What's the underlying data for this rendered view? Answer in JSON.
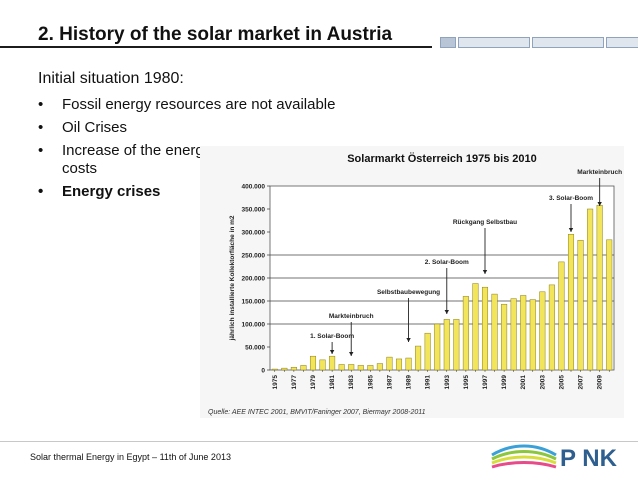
{
  "slide": {
    "title": "2. History of the solar market in Austria",
    "intro": "Initial situation 1980:",
    "bullets": [
      {
        "marker": "•",
        "text": "Fossil energy resources are not available"
      },
      {
        "marker": "•",
        "text": "Oil Crises"
      },
      {
        "marker": "•",
        "text": "Increase of the energy costs"
      },
      {
        "marker": "•",
        "text": "Energy crises"
      }
    ],
    "footer": "Solar thermal Energy in Egypt – 11th of June 2013",
    "logo_text": "P NK"
  },
  "chart_data": {
    "type": "bar",
    "title": "Solarmarkt Österreich 1975 bis 2010",
    "ylabel": "jährlich installierte Kollektorfläche in m2",
    "xlabel": "",
    "ylim": [
      0,
      400000
    ],
    "yticks": [
      "0",
      "50.000",
      "100.000",
      "150.000",
      "200.000",
      "250.000",
      "300.000",
      "350.000",
      "400.000"
    ],
    "categories": [
      "1975",
      "1976",
      "1977",
      "1978",
      "1979",
      "1980",
      "1981",
      "1982",
      "1983",
      "1984",
      "1985",
      "1986",
      "1987",
      "1988",
      "1989",
      "1990",
      "1991",
      "1992",
      "1993",
      "1994",
      "1995",
      "1996",
      "1997",
      "1998",
      "1999",
      "2000",
      "2001",
      "2002",
      "2003",
      "2004",
      "2005",
      "2006",
      "2007",
      "2008",
      "2009",
      "2010"
    ],
    "xtick_labels": [
      "1975",
      "1977",
      "1979",
      "1981",
      "1983",
      "1985",
      "1987",
      "1989",
      "1991",
      "1993",
      "1995",
      "1997",
      "1999",
      "2001",
      "2003",
      "2005",
      "2007",
      "2009"
    ],
    "values": [
      2000,
      4000,
      6000,
      10000,
      30000,
      22000,
      30000,
      12000,
      12000,
      10000,
      10000,
      14000,
      28000,
      24000,
      26000,
      52000,
      80000,
      100000,
      110000,
      110000,
      160000,
      188000,
      180000,
      165000,
      143000,
      155000,
      162000,
      153000,
      170000,
      185000,
      235000,
      295000,
      282000,
      350000,
      358000,
      283000
    ],
    "bar_color": "#f2e55c",
    "annotations": [
      {
        "text": "1. Solar-Boom",
        "x": "1981"
      },
      {
        "text": "Markteinbruch",
        "x": "1983"
      },
      {
        "text": "Selbstbaubewegung",
        "x": "1989"
      },
      {
        "text": "2. Solar-Boom",
        "x": "1993"
      },
      {
        "text": "Rückgang Selbstbau",
        "x": "1997"
      },
      {
        "text": "3. Solar-Boom",
        "x": "2006"
      },
      {
        "text": "Markteinbruch",
        "x": "2009"
      }
    ],
    "reference_lines": [
      100000,
      150000,
      200000,
      250000
    ],
    "source": "Quelle: AEE INTEC 2001, BMVIT/Faninger 2007, Biermayr 2008-2011",
    "grid": false
  }
}
